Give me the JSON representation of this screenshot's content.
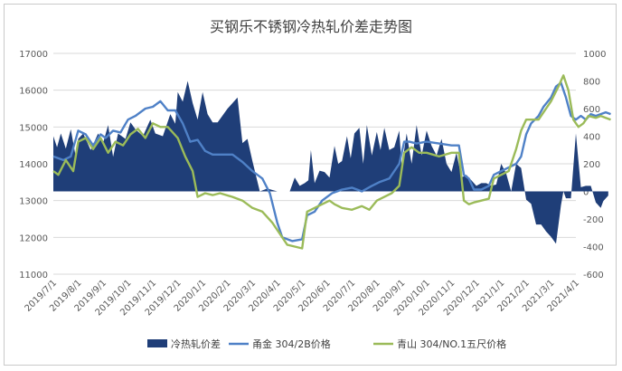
{
  "chart_data": {
    "type": "line",
    "title": "买钢乐不锈钢冷热轧价差走势图",
    "y_left": {
      "min": 11000,
      "max": 17000,
      "step": 1000
    },
    "y_right": {
      "min": -600,
      "max": 1000,
      "step": 200
    },
    "x_tick_labels": [
      "2019/7/1",
      "2019/8/1",
      "2019/9/1",
      "2019/10/1",
      "2019/11/1",
      "2019/12/1",
      "2020/1/1",
      "2020/2/1",
      "2020/3/1",
      "2020/4/1",
      "2020/5/1",
      "2020/6/1",
      "2020/7/1",
      "2020/8/1",
      "2020/9/1",
      "2020/10/1",
      "2020/11/1",
      "2020/12/1",
      "2021/1/1",
      "2021/2/1",
      "2021/3/1",
      "2021/4/1"
    ],
    "grid": "horizontal",
    "legend_position": "bottom",
    "series": [
      {
        "name": "冷热轧价差",
        "kind": "area",
        "axis": "right",
        "color": "#1f3e78",
        "points": [
          [
            0,
            400
          ],
          [
            0.15,
            320
          ],
          [
            0.3,
            420
          ],
          [
            0.5,
            310
          ],
          [
            0.7,
            450
          ],
          [
            0.9,
            250
          ],
          [
            1.0,
            380
          ],
          [
            1.2,
            420
          ],
          [
            1.5,
            300
          ],
          [
            1.8,
            420
          ],
          [
            2.0,
            350
          ],
          [
            2.2,
            480
          ],
          [
            2.4,
            250
          ],
          [
            2.6,
            420
          ],
          [
            2.9,
            380
          ],
          [
            3.1,
            500
          ],
          [
            3.3,
            450
          ],
          [
            3.6,
            400
          ],
          [
            3.9,
            520
          ],
          [
            4.1,
            420
          ],
          [
            4.4,
            400
          ],
          [
            4.7,
            560
          ],
          [
            4.9,
            490
          ],
          [
            5.0,
            720
          ],
          [
            5.2,
            650
          ],
          [
            5.4,
            800
          ],
          [
            5.6,
            640
          ],
          [
            5.8,
            520
          ],
          [
            6.0,
            720
          ],
          [
            6.2,
            560
          ],
          [
            6.4,
            500
          ],
          [
            6.6,
            500
          ],
          [
            7.0,
            600
          ],
          [
            7.4,
            680
          ],
          [
            7.6,
            350
          ],
          [
            7.8,
            380
          ],
          [
            8.0,
            220
          ],
          [
            8.3,
            0
          ],
          [
            8.6,
            20
          ],
          [
            9.0,
            0
          ],
          [
            9.3,
            0
          ],
          [
            9.5,
            0
          ],
          [
            9.7,
            100
          ],
          [
            9.9,
            40
          ],
          [
            10.1,
            60
          ],
          [
            10.25,
            80
          ],
          [
            10.35,
            300
          ],
          [
            10.5,
            60
          ],
          [
            10.7,
            150
          ],
          [
            10.9,
            140
          ],
          [
            11.1,
            100
          ],
          [
            11.3,
            330
          ],
          [
            11.45,
            200
          ],
          [
            11.6,
            220
          ],
          [
            11.8,
            400
          ],
          [
            11.95,
            240
          ],
          [
            12.1,
            420
          ],
          [
            12.3,
            460
          ],
          [
            12.45,
            200
          ],
          [
            12.6,
            480
          ],
          [
            12.8,
            260
          ],
          [
            13.0,
            430
          ],
          [
            13.15,
            300
          ],
          [
            13.3,
            460
          ],
          [
            13.5,
            300
          ],
          [
            13.7,
            320
          ],
          [
            13.9,
            440
          ],
          [
            14.0,
            180
          ],
          [
            14.2,
            420
          ],
          [
            14.4,
            200
          ],
          [
            14.6,
            480
          ],
          [
            14.8,
            260
          ],
          [
            15.0,
            440
          ],
          [
            15.2,
            330
          ],
          [
            15.4,
            260
          ],
          [
            15.6,
            380
          ],
          [
            15.8,
            200
          ],
          [
            16.0,
            140
          ],
          [
            16.2,
            280
          ],
          [
            16.4,
            100
          ],
          [
            16.6,
            120
          ],
          [
            16.8,
            80
          ],
          [
            17.0,
            40
          ],
          [
            17.2,
            60
          ],
          [
            17.4,
            60
          ],
          [
            17.6,
            40
          ],
          [
            17.8,
            50
          ],
          [
            18.0,
            200
          ],
          [
            18.2,
            130
          ],
          [
            18.4,
            0
          ],
          [
            18.6,
            200
          ],
          [
            18.8,
            170
          ],
          [
            19.0,
            -60
          ],
          [
            19.2,
            -90
          ],
          [
            19.4,
            -240
          ],
          [
            19.6,
            -240
          ],
          [
            19.8,
            -290
          ],
          [
            20.0,
            -330
          ],
          [
            20.2,
            -380
          ],
          [
            20.4,
            -100
          ],
          [
            20.5,
            0
          ],
          [
            20.6,
            -50
          ],
          [
            20.8,
            -50
          ],
          [
            21.0,
            420
          ],
          [
            21.2,
            30
          ],
          [
            21.4,
            40
          ],
          [
            21.6,
            40
          ],
          [
            21.8,
            -80
          ],
          [
            22.0,
            -120
          ],
          [
            22.1,
            -70
          ],
          [
            22.3,
            -30
          ]
        ]
      },
      {
        "name": "甬金 304/2B价格",
        "kind": "line",
        "axis": "left",
        "color": "#4f81c7",
        "points": [
          [
            0,
            14200
          ],
          [
            0.4,
            14100
          ],
          [
            0.7,
            14200
          ],
          [
            1.0,
            14900
          ],
          [
            1.3,
            14800
          ],
          [
            1.6,
            14500
          ],
          [
            1.9,
            14800
          ],
          [
            2.1,
            14700
          ],
          [
            2.4,
            14900
          ],
          [
            2.7,
            14850
          ],
          [
            3.0,
            15200
          ],
          [
            3.3,
            15300
          ],
          [
            3.7,
            15500
          ],
          [
            4.0,
            15550
          ],
          [
            4.3,
            15700
          ],
          [
            4.6,
            15450
          ],
          [
            4.9,
            15450
          ],
          [
            5.2,
            15100
          ],
          [
            5.5,
            14600
          ],
          [
            5.8,
            14650
          ],
          [
            6.1,
            14350
          ],
          [
            6.4,
            14250
          ],
          [
            6.8,
            14250
          ],
          [
            7.2,
            14250
          ],
          [
            7.6,
            14050
          ],
          [
            8.0,
            13800
          ],
          [
            8.4,
            13600
          ],
          [
            8.7,
            13200
          ],
          [
            9.0,
            12400
          ],
          [
            9.2,
            12000
          ],
          [
            9.6,
            11900
          ],
          [
            10.0,
            11950
          ],
          [
            10.2,
            12600
          ],
          [
            10.5,
            12700
          ],
          [
            10.8,
            13000
          ],
          [
            11.2,
            13200
          ],
          [
            11.6,
            13300
          ],
          [
            12.0,
            13350
          ],
          [
            12.4,
            13250
          ],
          [
            12.8,
            13400
          ],
          [
            13.1,
            13500
          ],
          [
            13.5,
            13600
          ],
          [
            13.9,
            14000
          ],
          [
            14.1,
            14600
          ],
          [
            14.3,
            14600
          ],
          [
            14.6,
            14550
          ],
          [
            15.0,
            14600
          ],
          [
            15.5,
            14550
          ],
          [
            16.0,
            14500
          ],
          [
            16.3,
            14500
          ],
          [
            16.5,
            13700
          ],
          [
            16.7,
            13600
          ],
          [
            16.9,
            13300
          ],
          [
            17.2,
            13300
          ],
          [
            17.5,
            13400
          ],
          [
            17.7,
            13700
          ],
          [
            18.0,
            13800
          ],
          [
            18.3,
            13900
          ],
          [
            18.6,
            14000
          ],
          [
            18.8,
            14200
          ],
          [
            19.0,
            14800
          ],
          [
            19.2,
            15100
          ],
          [
            19.5,
            15300
          ],
          [
            19.7,
            15550
          ],
          [
            20.0,
            15800
          ],
          [
            20.2,
            16100
          ],
          [
            20.4,
            16200
          ],
          [
            20.6,
            15800
          ],
          [
            20.8,
            15300
          ],
          [
            21.0,
            15200
          ],
          [
            21.2,
            15300
          ],
          [
            21.4,
            15200
          ],
          [
            21.6,
            15350
          ],
          [
            21.8,
            15300
          ],
          [
            22.0,
            15350
          ],
          [
            22.2,
            15400
          ],
          [
            22.4,
            15350
          ]
        ]
      },
      {
        "name": "青山 304/NO.1五尺价格",
        "kind": "line",
        "axis": "left",
        "color": "#9bbb59",
        "points": [
          [
            0,
            13800
          ],
          [
            0.2,
            13700
          ],
          [
            0.5,
            14100
          ],
          [
            0.8,
            13800
          ],
          [
            1.0,
            14600
          ],
          [
            1.3,
            14700
          ],
          [
            1.6,
            14400
          ],
          [
            1.9,
            14700
          ],
          [
            2.2,
            14300
          ],
          [
            2.5,
            14600
          ],
          [
            2.8,
            14500
          ],
          [
            3.1,
            14800
          ],
          [
            3.4,
            14950
          ],
          [
            3.7,
            14700
          ],
          [
            4.0,
            15100
          ],
          [
            4.3,
            15000
          ],
          [
            4.6,
            15000
          ],
          [
            5.0,
            14700
          ],
          [
            5.3,
            14200
          ],
          [
            5.6,
            13800
          ],
          [
            5.8,
            13100
          ],
          [
            6.1,
            13200
          ],
          [
            6.4,
            13150
          ],
          [
            6.7,
            13200
          ],
          [
            7.2,
            13100
          ],
          [
            7.6,
            13000
          ],
          [
            8.0,
            12800
          ],
          [
            8.4,
            12700
          ],
          [
            8.8,
            12400
          ],
          [
            9.1,
            12100
          ],
          [
            9.4,
            11800
          ],
          [
            9.7,
            11750
          ],
          [
            10.0,
            11700
          ],
          [
            10.2,
            12700
          ],
          [
            10.5,
            12800
          ],
          [
            10.8,
            12900
          ],
          [
            11.1,
            13000
          ],
          [
            11.3,
            12900
          ],
          [
            11.6,
            12800
          ],
          [
            12.0,
            12750
          ],
          [
            12.4,
            12850
          ],
          [
            12.7,
            12750
          ],
          [
            13.0,
            13000
          ],
          [
            13.3,
            13100
          ],
          [
            13.6,
            13200
          ],
          [
            13.9,
            13400
          ],
          [
            14.1,
            14300
          ],
          [
            14.4,
            14450
          ],
          [
            14.7,
            14300
          ],
          [
            15.0,
            14300
          ],
          [
            15.5,
            14200
          ],
          [
            16.0,
            14300
          ],
          [
            16.3,
            14300
          ],
          [
            16.5,
            13000
          ],
          [
            16.7,
            12900
          ],
          [
            16.9,
            12950
          ],
          [
            17.2,
            13000
          ],
          [
            17.5,
            13050
          ],
          [
            17.7,
            13600
          ],
          [
            18.0,
            13700
          ],
          [
            18.3,
            13800
          ],
          [
            18.6,
            14400
          ],
          [
            18.8,
            14900
          ],
          [
            19.0,
            15200
          ],
          [
            19.5,
            15200
          ],
          [
            19.8,
            15500
          ],
          [
            20.0,
            15700
          ],
          [
            20.3,
            16100
          ],
          [
            20.5,
            16400
          ],
          [
            20.7,
            16000
          ],
          [
            20.9,
            15200
          ],
          [
            21.1,
            15000
          ],
          [
            21.3,
            15100
          ],
          [
            21.5,
            15300
          ],
          [
            21.8,
            15250
          ],
          [
            22.0,
            15300
          ],
          [
            22.2,
            15250
          ],
          [
            22.4,
            15200
          ]
        ]
      }
    ]
  }
}
